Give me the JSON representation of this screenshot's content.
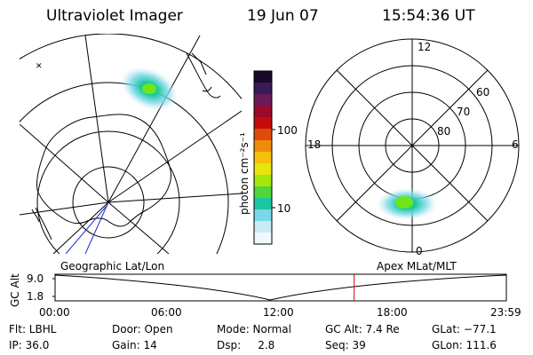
{
  "header": {
    "title": "Ultraviolet Imager",
    "date": "19 Jun 07",
    "time": "15:54:36 UT"
  },
  "colorbar": {
    "unit_label": "photon cm⁻²s⁻¹",
    "tick_labels": [
      "100",
      "10"
    ],
    "colors": [
      "#1a0a2a",
      "#3a1a55",
      "#6a1a5a",
      "#9a0a2a",
      "#c80a0a",
      "#e04a0a",
      "#f08c0a",
      "#f5c00a",
      "#e6e60a",
      "#a6e60a",
      "#4ed63a",
      "#1ac8a0",
      "#7ad8e8",
      "#c8ecf4",
      "#f0f8fc"
    ]
  },
  "left_map": {
    "caption": "Geographic Lat/Lon"
  },
  "right_map": {
    "caption": "Apex MLat/MLT",
    "mlt_labels": {
      "top": "12",
      "left": "18",
      "right": "6",
      "bottom": "0"
    },
    "lat_labels": [
      "60",
      "70",
      "80"
    ]
  },
  "altitude_plot": {
    "ylabel": "GC Alt",
    "ytick_top": "9.0",
    "ytick_bottom": "1.8",
    "xticks": [
      "00:00",
      "06:00",
      "12:00",
      "18:00",
      "23:59"
    ],
    "marker_color": "#d00000",
    "marker_time_fraction": 0.6628
  },
  "status": {
    "flt": "Flt: LBHL",
    "ip": "IP: 36.0",
    "door": "Door: Open",
    "gain": "Gain: 14",
    "mode": "Mode: Normal",
    "dsp": "Dsp:     2.8",
    "gcalt": "GC Alt: 7.4 Re",
    "seq": "Seq: 39",
    "glat": "GLat: −77.1",
    "glon": "GLon: 111.6"
  }
}
